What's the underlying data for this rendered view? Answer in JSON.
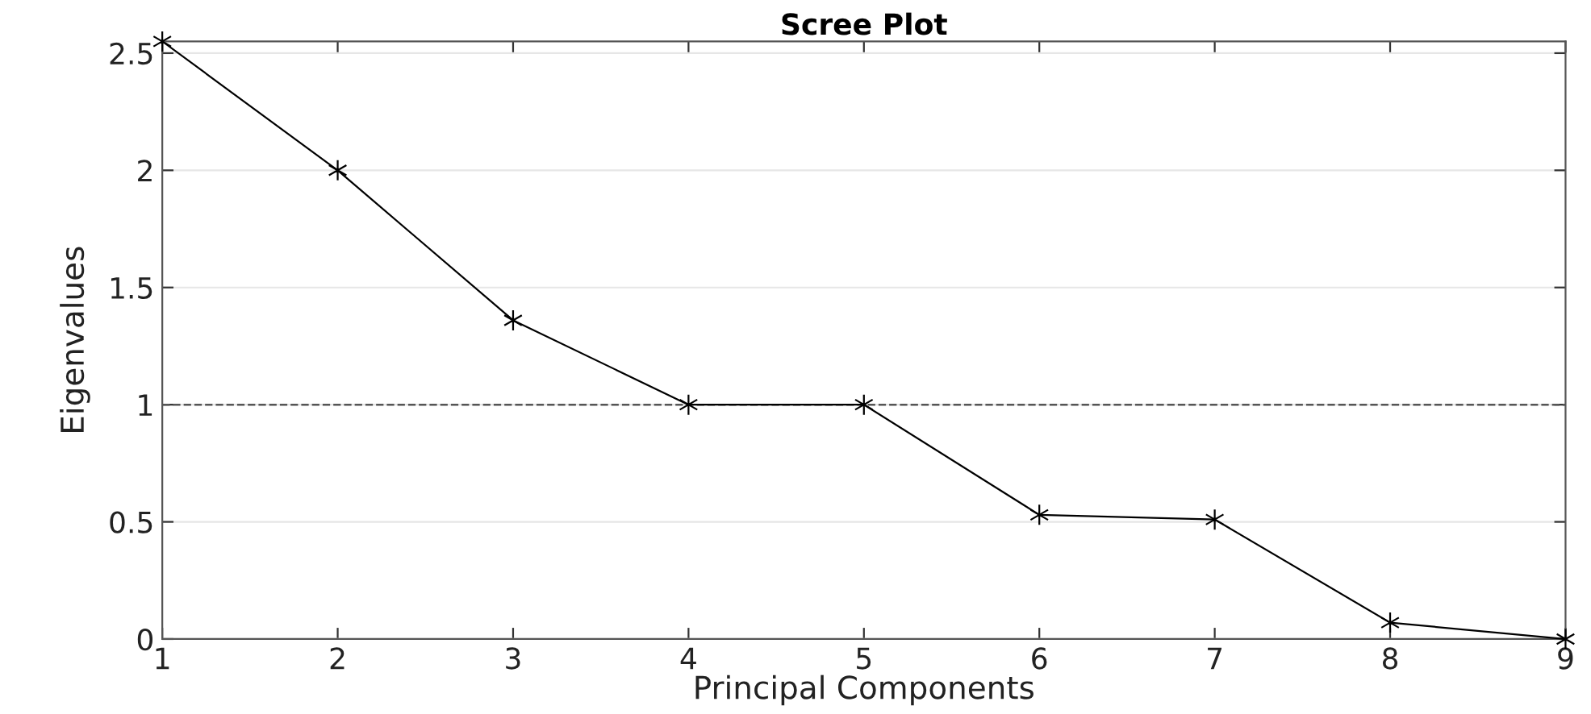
{
  "chart_data": {
    "type": "line",
    "title": "Scree Plot",
    "xlabel": "Principal Components",
    "ylabel": "Eigenvalues",
    "x": [
      1,
      2,
      3,
      4,
      5,
      6,
      7,
      8,
      9
    ],
    "series": [
      {
        "color": "#000000",
        "values": [
          2.55,
          2.0,
          1.36,
          1.0,
          1.0,
          0.53,
          0.51,
          0.07,
          0.0
        ]
      }
    ],
    "xlim": [
      1,
      9
    ],
    "xticks": [
      1,
      2,
      3,
      4,
      5,
      6,
      7,
      8,
      9
    ],
    "ylim": [
      0,
      2.55
    ],
    "yticks": [
      0,
      0.5,
      1,
      1.5,
      2,
      2.5
    ],
    "ref_lines": [
      {
        "axis": "y",
        "value": 1,
        "color": "#555555",
        "line_style": "dashed"
      }
    ],
    "grid": "y",
    "marker": "cross",
    "line_style": "solid"
  }
}
